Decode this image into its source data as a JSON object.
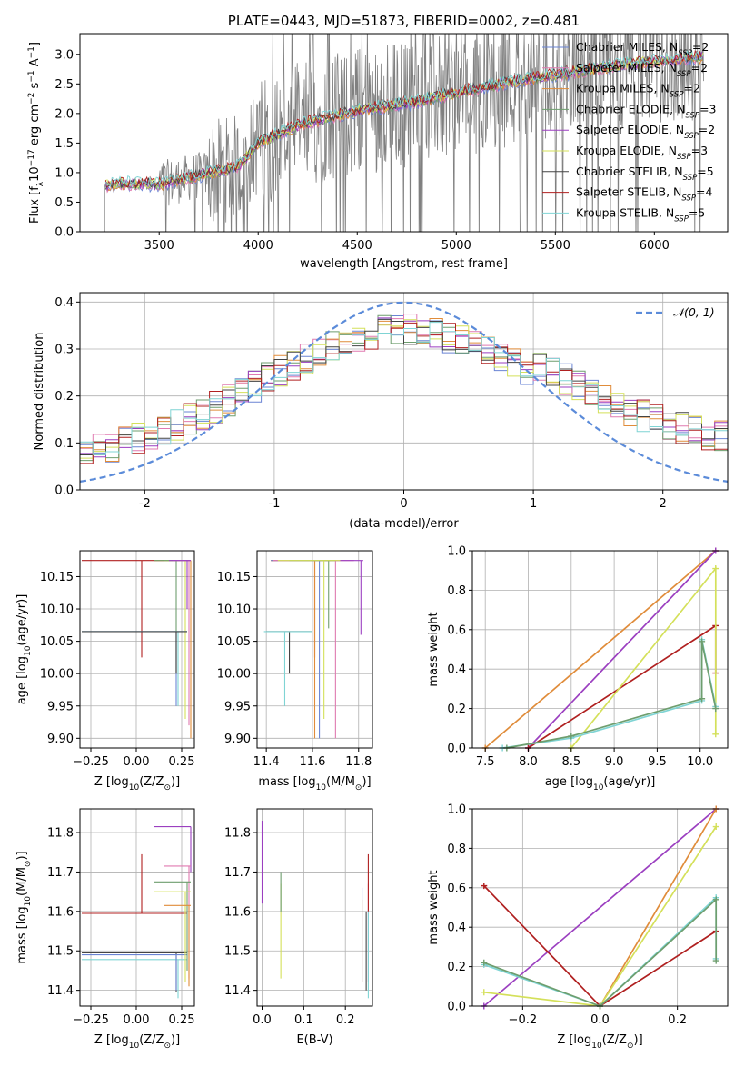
{
  "colors": {
    "chabrier_miles": "#6a84d4",
    "salpeter_miles": "#e07ab0",
    "kroupa_miles": "#e08c3a",
    "chabrier_elodie": "#6e9e6e",
    "salpeter_elodie": "#9b3fc0",
    "kroupa_elodie": "#d4e05a",
    "chabrier_stelib": "#444444",
    "salpeter_stelib": "#b02020",
    "kroupa_stelib": "#7fd4d4",
    "data": "#808080",
    "normal": "#5b8bd9"
  },
  "chart_data": [
    {
      "id": "spectrum",
      "type": "line",
      "title": "PLATE=0443, MJD=51873, FIBERID=0002, z=0.481",
      "xlabel": "wavelength [Angstrom, rest frame]",
      "ylabel": "Flux [f",
      "ylabel_sub": "λ",
      "ylabel_rest": "10",
      "ylabel_sup1": "−17",
      "ylabel_rest2": " erg cm",
      "ylabel_sup2": "−2",
      "ylabel_rest3": " s",
      "ylabel_sup3": "−1",
      "ylabel_rest4": " A",
      "ylabel_sup4": "−1",
      "ylabel_rest5": "]",
      "xlim": [
        3100,
        6370
      ],
      "ylim": [
        0,
        3.35
      ],
      "xticks": [
        3500,
        4000,
        4500,
        5000,
        5500,
        6000
      ],
      "yticks": [
        0.0,
        0.5,
        1.0,
        1.5,
        2.0,
        2.5,
        3.0
      ],
      "model_trend": [
        [
          3230,
          0.78
        ],
        [
          3300,
          0.82
        ],
        [
          3500,
          0.8
        ],
        [
          3700,
          0.95
        ],
        [
          3900,
          1.1
        ],
        [
          4000,
          1.5
        ],
        [
          4200,
          1.8
        ],
        [
          4500,
          2.05
        ],
        [
          4800,
          2.2
        ],
        [
          5000,
          2.35
        ],
        [
          5300,
          2.55
        ],
        [
          5600,
          2.7
        ],
        [
          5900,
          2.85
        ],
        [
          6200,
          2.95
        ]
      ],
      "legend": [
        {
          "label": "Chabrier MILES, N",
          "sub": "SSP",
          "val": "=2"
        },
        {
          "label": "Salpeter MILES, N",
          "sub": "SSP",
          "val": "=2"
        },
        {
          "label": "Kroupa MILES, N",
          "sub": "SSP",
          "val": "=2"
        },
        {
          "label": "Chabrier ELODIE, N",
          "sub": "SSP",
          "val": "=3"
        },
        {
          "label": "Salpeter ELODIE, N",
          "sub": "SSP",
          "val": "=2"
        },
        {
          "label": "Kroupa ELODIE, N",
          "sub": "SSP",
          "val": "=3"
        },
        {
          "label": "Chabrier STELIB, N",
          "sub": "SSP",
          "val": "=5"
        },
        {
          "label": "Salpeter STELIB, N",
          "sub": "SSP",
          "val": "=4"
        },
        {
          "label": "Kroupa STELIB, N",
          "sub": "SSP",
          "val": "=5"
        }
      ]
    },
    {
      "id": "residuals",
      "type": "line",
      "xlabel": "(data-model)/error",
      "ylabel": "Normed distribution",
      "xlim": [
        -2.5,
        2.5
      ],
      "ylim": [
        0,
        0.42
      ],
      "xticks": [
        -2,
        -1,
        0,
        1,
        2
      ],
      "yticks": [
        0.0,
        0.1,
        0.2,
        0.3,
        0.4
      ],
      "legend_label": "𝒩(0, 1)"
    },
    {
      "id": "age_vs_Z",
      "type": "scatter",
      "xlabel": "Z [log",
      "xlabel_sub": "10",
      "xlabel_rest": "(Z/Z",
      "xlabel_sub2": "⊙",
      "xlabel_rest2": ")]",
      "ylabel": "age  [log",
      "ylabel_sub": "10",
      "ylabel_rest": "(age/yr)]",
      "xlim": [
        -0.31,
        0.32
      ],
      "ylim": [
        9.885,
        10.19
      ],
      "xticks": [
        -0.25,
        0.0,
        0.25
      ],
      "xticklabels": [
        "−0.25",
        "0.00",
        "0.25"
      ],
      "yticks": [
        9.9,
        9.95,
        10.0,
        10.05,
        10.1,
        10.15
      ],
      "yticklabels": [
        "9.90",
        "9.95",
        "10.00",
        "10.05",
        "10.10",
        "10.15"
      ]
    },
    {
      "id": "age_vs_mass",
      "type": "scatter",
      "xlabel": "mass [log",
      "xlabel_sub": "10",
      "xlabel_rest": "(M/M",
      "xlabel_sub2": "⊙",
      "xlabel_rest2": ")]",
      "xlim": [
        11.36,
        11.86
      ],
      "ylim": [
        9.885,
        10.19
      ],
      "xticks": [
        11.4,
        11.6,
        11.8
      ],
      "xticklabels": [
        "11.4",
        "11.6",
        "11.8"
      ],
      "yticks": [
        9.9,
        9.95,
        10.0,
        10.05,
        10.1,
        10.15
      ],
      "yticklabels": [
        "9.90",
        "9.95",
        "10.00",
        "10.05",
        "10.10",
        "10.15"
      ]
    },
    {
      "id": "weight_vs_age",
      "type": "line",
      "xlabel": "age  [log",
      "xlabel_sub": "10",
      "xlabel_rest": "(age/yr)]",
      "ylabel": "mass weight",
      "xlim": [
        7.35,
        10.32
      ],
      "ylim": [
        0,
        1.0
      ],
      "xticks": [
        7.5,
        8.0,
        8.5,
        9.0,
        9.5,
        10.0
      ],
      "xticklabels": [
        "7.5",
        "8.0",
        "8.5",
        "9.0",
        "9.5",
        "10.0"
      ],
      "yticks": [
        0.0,
        0.2,
        0.4,
        0.6,
        0.8,
        1.0
      ],
      "yticklabels": [
        "0.0",
        "0.2",
        "0.4",
        "0.6",
        "0.8",
        "1.0"
      ],
      "series": [
        {
          "c": "kroupa_miles",
          "pts": [
            [
              7.5,
              0.0
            ],
            [
              10.18,
              1.0
            ]
          ]
        },
        {
          "c": "salpeter_elodie",
          "pts": [
            [
              8.0,
              0.0
            ],
            [
              10.18,
              1.0
            ]
          ]
        },
        {
          "c": "salpeter_stelib",
          "pts": [
            [
              8.0,
              0.0
            ],
            [
              10.18,
              0.62
            ],
            [
              10.18,
              0.38
            ]
          ]
        },
        {
          "c": "kroupa_elodie",
          "pts": [
            [
              8.5,
              0.0
            ],
            [
              10.18,
              0.91
            ],
            [
              10.18,
              0.07
            ]
          ]
        },
        {
          "c": "kroupa_stelib",
          "pts": [
            [
              7.7,
              0.0
            ],
            [
              8.5,
              0.05
            ],
            [
              10.02,
              0.24
            ],
            [
              10.02,
              0.55
            ],
            [
              10.18,
              0.21
            ]
          ]
        },
        {
          "c": "chabrier_elodie",
          "pts": [
            [
              7.75,
              0.0
            ],
            [
              8.5,
              0.06
            ],
            [
              10.02,
              0.25
            ],
            [
              10.02,
              0.54
            ],
            [
              10.18,
              0.2
            ]
          ]
        }
      ]
    },
    {
      "id": "mass_vs_Z",
      "type": "scatter",
      "xlabel": "Z [log",
      "xlabel_sub": "10",
      "xlabel_rest": "(Z/Z",
      "xlabel_sub2": "⊙",
      "xlabel_rest2": ")]",
      "ylabel": "mass [log",
      "ylabel_sub": "10",
      "ylabel_rest": "(M/M",
      "ylabel_sub2": "⊙",
      "ylabel_rest2": ")]",
      "xlim": [
        -0.31,
        0.32
      ],
      "ylim": [
        11.36,
        11.86
      ],
      "xticks": [
        -0.25,
        0.0,
        0.25
      ],
      "xticklabels": [
        "−0.25",
        "0.00",
        "0.25"
      ],
      "yticks": [
        11.4,
        11.5,
        11.6,
        11.7,
        11.8
      ],
      "yticklabels": [
        "11.4",
        "11.5",
        "11.6",
        "11.7",
        "11.8"
      ]
    },
    {
      "id": "mass_vs_ebv",
      "type": "scatter",
      "xlabel": "E(B-V)",
      "xlim": [
        -0.012,
        0.265
      ],
      "ylim": [
        11.36,
        11.86
      ],
      "xticks": [
        0.0,
        0.1,
        0.2
      ],
      "xticklabels": [
        "0.0",
        "0.1",
        "0.2"
      ],
      "yticks": [
        11.4,
        11.5,
        11.6,
        11.7,
        11.8
      ],
      "yticklabels": [
        "11.4",
        "11.5",
        "11.6",
        "11.7",
        "11.8"
      ]
    },
    {
      "id": "weight_vs_Z",
      "type": "line",
      "xlabel": "Z [log",
      "xlabel_sub": "10",
      "xlabel_rest": "(Z/Z",
      "xlabel_sub2": "⊙",
      "xlabel_rest2": ")]",
      "ylabel": "mass weight",
      "xlim": [
        -0.33,
        0.33
      ],
      "ylim": [
        0,
        1.0
      ],
      "xticks": [
        -0.2,
        0.0,
        0.2
      ],
      "xticklabels": [
        "−0.2",
        "0.0",
        "0.2"
      ],
      "yticks": [
        0.0,
        0.2,
        0.4,
        0.6,
        0.8,
        1.0
      ],
      "yticklabels": [
        "0.0",
        "0.2",
        "0.4",
        "0.6",
        "0.8",
        "1.0"
      ],
      "series": [
        {
          "c": "salpeter_elodie",
          "pts": [
            [
              -0.3,
              0.0
            ],
            [
              0.3,
              1.0
            ]
          ]
        },
        {
          "c": "kroupa_miles",
          "pts": [
            [
              0.0,
              0.0
            ],
            [
              0.3,
              1.0
            ]
          ]
        },
        {
          "c": "salpeter_stelib",
          "pts": [
            [
              -0.3,
              0.61
            ],
            [
              0.0,
              0.0
            ],
            [
              0.3,
              0.38
            ]
          ]
        },
        {
          "c": "kroupa_elodie",
          "pts": [
            [
              -0.3,
              0.07
            ],
            [
              0.0,
              0.0
            ],
            [
              0.3,
              0.91
            ]
          ]
        },
        {
          "c": "kroupa_stelib",
          "pts": [
            [
              -0.3,
              0.21
            ],
            [
              0.0,
              0.0
            ],
            [
              0.3,
              0.55
            ],
            [
              0.3,
              0.24
            ]
          ]
        },
        {
          "c": "chabrier_elodie",
          "pts": [
            [
              -0.3,
              0.22
            ],
            [
              0.0,
              0.0
            ],
            [
              0.3,
              0.54
            ],
            [
              0.3,
              0.23
            ]
          ]
        }
      ]
    }
  ]
}
